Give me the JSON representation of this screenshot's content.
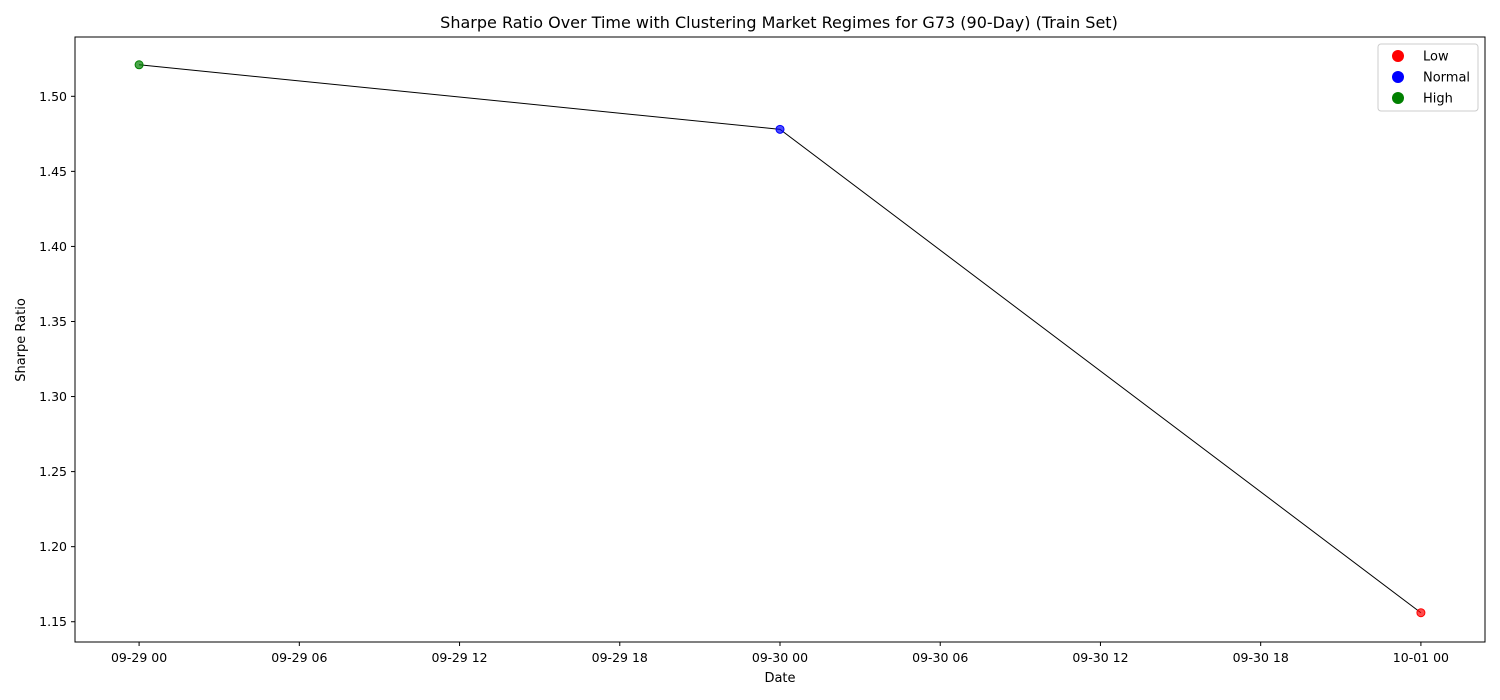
{
  "chart_data": {
    "type": "line",
    "title": "Sharpe Ratio Over Time with Clustering Market Regimes for G73 (90-Day) (Train Set)",
    "xlabel": "Date",
    "ylabel": "Sharpe Ratio",
    "x_tick_labels": [
      "09-29 00",
      "09-29 06",
      "09-29 12",
      "09-29 18",
      "09-30 00",
      "09-30 06",
      "09-30 12",
      "09-30 18",
      "10-01 00"
    ],
    "y_ticks": [
      1.15,
      1.2,
      1.25,
      1.3,
      1.35,
      1.4,
      1.45,
      1.5
    ],
    "y_tick_labels": [
      "1.15",
      "1.20",
      "1.25",
      "1.30",
      "1.35",
      "1.40",
      "1.45",
      "1.50"
    ],
    "x_range_hours": [
      -2.4,
      50.4
    ],
    "ylim": [
      1.1365,
      1.5395
    ],
    "grid": false,
    "legend_position": "top-right",
    "line_color": "#000000",
    "regimes": [
      {
        "name": "Low",
        "color": "#ff0000"
      },
      {
        "name": "Normal",
        "color": "#0000ff"
      },
      {
        "name": "High",
        "color": "#008000"
      }
    ],
    "points": [
      {
        "date": "09-29 00",
        "hours": 0,
        "y": 1.521,
        "regime": "High"
      },
      {
        "date": "09-30 00",
        "hours": 24,
        "y": 1.478,
        "regime": "Normal"
      },
      {
        "date": "10-01 00",
        "hours": 48,
        "y": 1.156,
        "regime": "Low"
      }
    ]
  }
}
